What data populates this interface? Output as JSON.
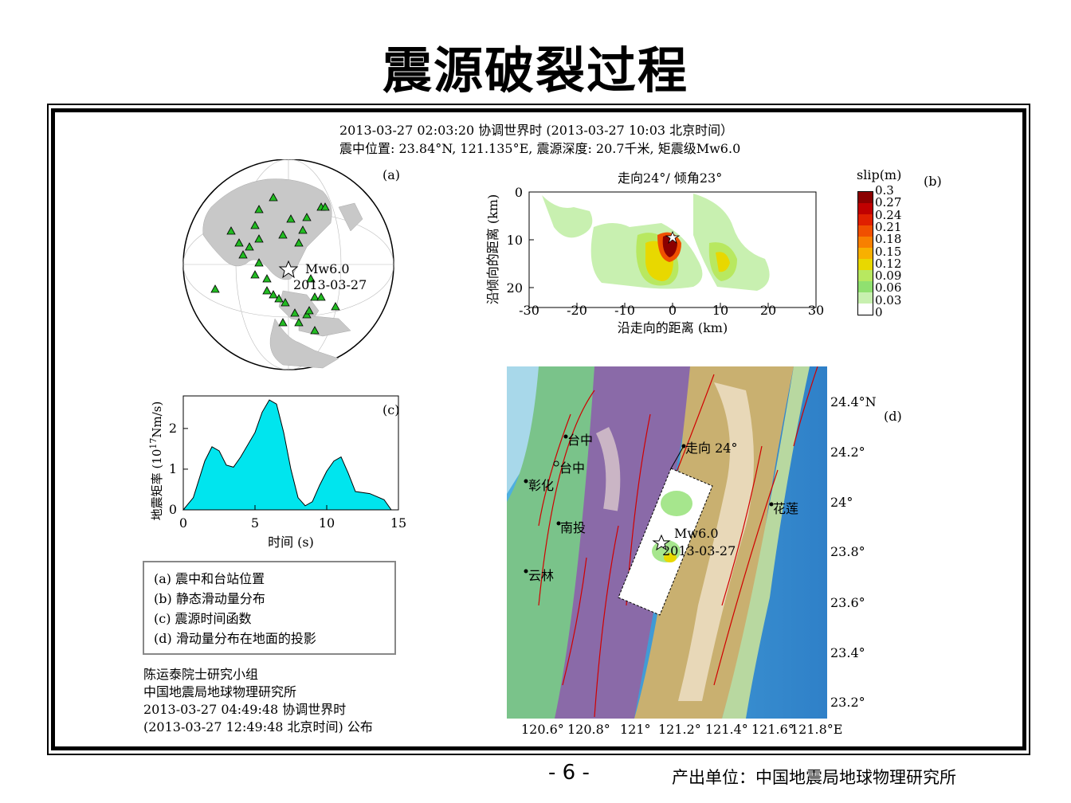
{
  "slide_title": "震源破裂过程",
  "header": {
    "line1": "2013-03-27 02:03:20 协调世界时  (2013-03-27 10:03 北京时间）",
    "line2": "震中位置: 23.84°N, 121.135°E,  震源深度: 20.7千米,  矩震级Mw6.0"
  },
  "panel_a": {
    "tag": "(a)",
    "event_mag": "Mw6.0",
    "event_date": "2013-03-27"
  },
  "panel_b": {
    "tag": "(b)",
    "title": "走向24°/ 倾角23°",
    "xlabel": "沿走向的距离 (km)",
    "ylabel": "沿倾向的距离 (km)",
    "xticks": [
      "-30",
      "-20",
      "-10",
      "0",
      "10",
      "20",
      "30"
    ],
    "yticks": [
      "0",
      "10",
      "20"
    ],
    "colorbar_title": "slip(m)",
    "colorbar_labels": [
      "0.3",
      "0.27",
      "0.24",
      "0.21",
      "0.18",
      "0.15",
      "0.12",
      "0.09",
      "0.06",
      "0.03",
      "0"
    ],
    "colorbar_colors": [
      "#8b0000",
      "#c00000",
      "#e02000",
      "#f05000",
      "#f88000",
      "#f8b000",
      "#e8d800",
      "#b8e860",
      "#90e070",
      "#c8f0b0",
      "#ffffff"
    ]
  },
  "panel_c": {
    "tag": "(c)",
    "xlabel": "时间 (s)",
    "ylabel_main": "地震矩率 (10",
    "ylabel_sup": "17",
    "ylabel_end": "Nm/s)",
    "xticks": [
      "0",
      "5",
      "10",
      "15"
    ],
    "yticks": [
      "0",
      "1",
      "2"
    ],
    "fill_color": "#00e5ee"
  },
  "panel_d": {
    "tag": "(d)",
    "strike_label": "走向 24°",
    "event_mag": "Mw6.0",
    "event_date": "2013-03-27",
    "cities": [
      "台中",
      "台中",
      "彰化",
      "南投",
      "云林",
      "花莲"
    ],
    "lat_labels": [
      "24.4°N",
      "24.2°",
      "24°",
      "23.8°",
      "23.6°",
      "23.4°",
      "23.2°"
    ],
    "lon_labels": [
      "120.6°",
      "120.8°",
      "121°",
      "121.2°",
      "121.4°",
      "121.6°",
      "121.8°E"
    ]
  },
  "legend": {
    "items": [
      "(a) 震中和台站位置",
      "(b) 静态滑动量分布",
      "(c) 震源时间函数",
      "(d) 滑动量分布在地面的投影"
    ]
  },
  "credits": {
    "line1": "陈运泰院士研究小组",
    "line2": "中国地震局地球物理研究所",
    "line3": "2013-03-27 04:49:48 协调世界时",
    "line4": "(2013-03-27 12:49:48 北京时间)  公布"
  },
  "footer": {
    "page": "- 6 -",
    "org": "产出单位：中国地震局地球物理研究所"
  },
  "chart_data": {
    "type": "area",
    "title": "",
    "xlabel": "时间 (s)",
    "ylabel": "地震矩率 (10^17 Nm/s)",
    "xlim": [
      0,
      15
    ],
    "ylim": [
      0,
      2.8
    ],
    "x": [
      0,
      0.7,
      1.5,
      2,
      2.5,
      3,
      3.5,
      4,
      5,
      5.5,
      6,
      6.5,
      7,
      7.5,
      8,
      8.5,
      9,
      9.5,
      10,
      10.5,
      11,
      11.5,
      12,
      13,
      14,
      14.5
    ],
    "y": [
      0,
      0.3,
      1.2,
      1.55,
      1.45,
      1.1,
      1.05,
      1.3,
      1.9,
      2.4,
      2.7,
      2.6,
      1.9,
      1.0,
      0.3,
      0.1,
      0.2,
      0.6,
      0.95,
      1.2,
      1.3,
      0.9,
      0.45,
      0.4,
      0.25,
      0
    ]
  }
}
